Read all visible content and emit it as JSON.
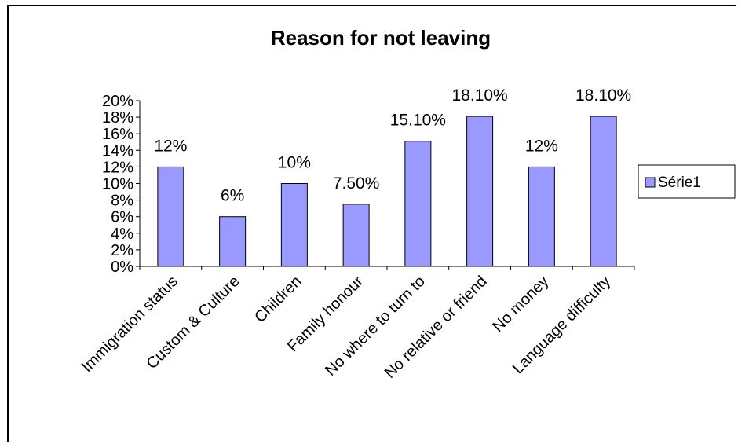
{
  "chart_data": {
    "type": "bar",
    "title": "Reason for not leaving",
    "categories": [
      "Immigration status",
      "Custom & Culture",
      "Children",
      "Family honour",
      "No where to turn to",
      "No relative or friend",
      "No money",
      "Language difficulty"
    ],
    "series": [
      {
        "name": "Série1",
        "values": [
          12,
          6,
          10,
          7.5,
          15.1,
          18.1,
          12,
          18.1
        ],
        "data_labels": [
          "12%",
          "6%",
          "10%",
          "7.50%",
          "15.10%",
          "18.10%",
          "12%",
          "18.10%"
        ]
      }
    ],
    "yticks": [
      "0%",
      "2%",
      "4%",
      "6%",
      "8%",
      "10%",
      "12%",
      "14%",
      "16%",
      "18%",
      "20%"
    ],
    "ylim": [
      0,
      20
    ],
    "grid": false,
    "legend_position": "right",
    "colors": {
      "bar_fill": "#9999ff",
      "bar_stroke": "#000000",
      "axis": "#000000"
    }
  }
}
